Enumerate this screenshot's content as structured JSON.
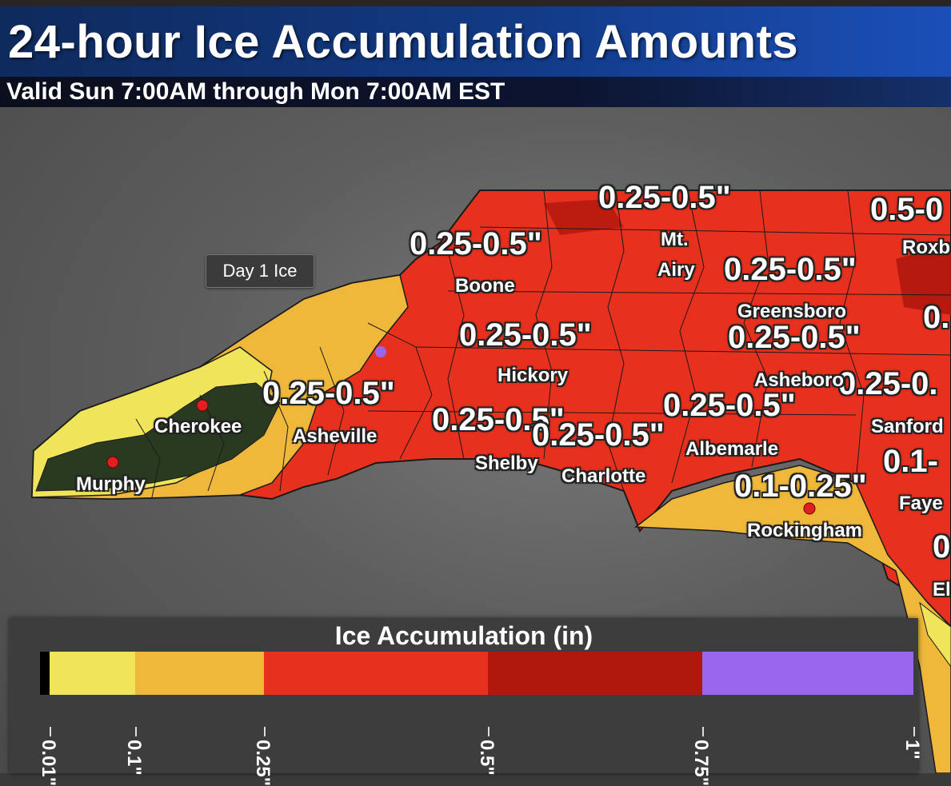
{
  "header": {
    "title": "24-hour Ice Accumulation Amounts",
    "subtitle": "Valid Sun 7:00AM through Mon 7:00AM EST"
  },
  "tooltip": {
    "label": "Day 1 Ice"
  },
  "colors": {
    "yellow_light": "#f0e45a",
    "orange_light": "#f0b83a",
    "red": "#e8301e",
    "dark_red": "#b0180c",
    "purple": "#9a66ee",
    "terrain_dark": "#2a3a20",
    "city_dot": "#e02020"
  },
  "map": {
    "range_labels": {
      "r1": "0.25-0.5\"",
      "r2": "0.5-0",
      "r3": "0.25-0.5\"",
      "r4": "0.25-0.5\"",
      "r5": "0.",
      "r6": "0.25-0.5\"",
      "r7": "0.25-0.5\"",
      "r8": "0.25-0.5\"",
      "r9": "0.25-0.",
      "r10": "0.25-0.5\"",
      "r11": "0.25-0.5\"",
      "r12": "0.25-0.5\"",
      "r13": "0.1-0.25\"",
      "r14": "0.1-",
      "r15": "0"
    },
    "cities": {
      "mt": "Mt.",
      "airy": "Airy",
      "roxboro": "Roxb",
      "boone": "Boone",
      "greensboro": "Greensboro",
      "hickory": "Hickory",
      "asheboro": "Asheboro",
      "cherokee": "Cherokee",
      "asheville": "Asheville",
      "sanford": "Sanford",
      "murphy": "Murphy",
      "shelby": "Shelby",
      "charlotte": "Charlotte",
      "albemarle": "Albemarle",
      "fayetteville": "Faye",
      "rockingham": "Rockingham",
      "elizabethtown": "El"
    }
  },
  "legend": {
    "title": "Ice Accumulation (in)",
    "bins": [
      {
        "from": 0.01,
        "to": 0.1,
        "color": "#f0e45a"
      },
      {
        "from": 0.1,
        "to": 0.25,
        "color": "#f0b83a"
      },
      {
        "from": 0.25,
        "to": 0.5,
        "color": "#e8301e"
      },
      {
        "from": 0.5,
        "to": 0.75,
        "color": "#b0180c"
      },
      {
        "from": 0.75,
        "to": 1.0,
        "color": "#9a66ee"
      }
    ],
    "ticks": [
      "0.01\"",
      "0.1\"",
      "0.25\"",
      "0.5\"",
      "0.75\"",
      "1\""
    ]
  }
}
